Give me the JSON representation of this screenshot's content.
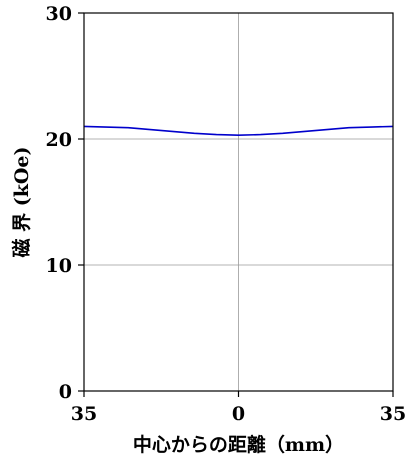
{
  "chart_data": {
    "type": "line",
    "title": "",
    "xlabel": "中心からの距離（mm）",
    "ylabel": "磁 界 (kOe)",
    "xlim": [
      -35,
      35
    ],
    "ylim": [
      0,
      30
    ],
    "x_ticks": [
      -35,
      0,
      35
    ],
    "x_tick_labels": [
      "35",
      "0",
      "35"
    ],
    "y_ticks": [
      0,
      10,
      20,
      30
    ],
    "y_tick_labels": [
      "0",
      "10",
      "20",
      "30"
    ],
    "grid": true,
    "legend": "none",
    "series": [
      {
        "color": "#0000cc",
        "x": [
          -35,
          -30,
          -25,
          -20,
          -15,
          -10,
          -5,
          0,
          5,
          10,
          15,
          20,
          25,
          30,
          35
        ],
        "y": [
          21.0,
          20.95,
          20.9,
          20.75,
          20.6,
          20.45,
          20.35,
          20.3,
          20.35,
          20.45,
          20.6,
          20.75,
          20.9,
          20.95,
          21.0
        ]
      }
    ]
  }
}
